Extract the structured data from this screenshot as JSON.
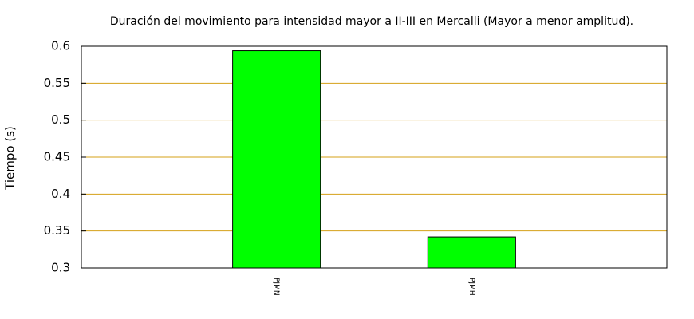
{
  "chart_data": {
    "type": "bar",
    "title": "Duración del movimiento para intensidad mayor a II-III en Mercalli (Mayor a menor amplitud).",
    "y_label": "Tiempo (s)",
    "categories": [
      "PJMN",
      "PJMH"
    ],
    "values": [
      0.594,
      0.342
    ],
    "color": "#00ff00",
    "grid_color": "#d4a017",
    "ylim": [
      0.3,
      0.6
    ],
    "yticks": [
      0.3,
      0.35,
      0.4,
      0.45,
      0.5,
      0.55,
      0.6
    ],
    "grid": true
  }
}
